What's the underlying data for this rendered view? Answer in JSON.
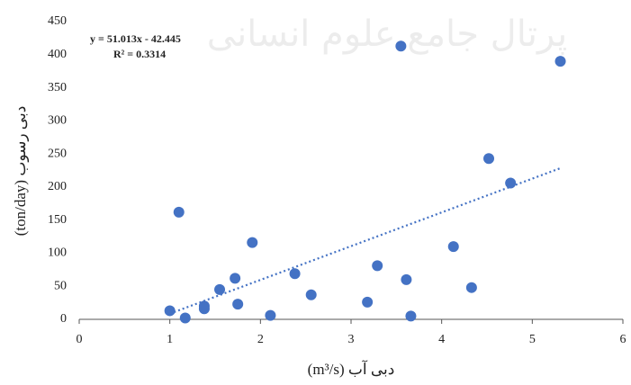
{
  "chart_data": {
    "type": "scatter",
    "watermark": "پرتال جامع علوم انسانی",
    "x_label": "دبی آب (m³/s)",
    "y_label": "دبی رسوب (ton/day)",
    "x": [
      1.0,
      1.1,
      1.17,
      1.38,
      1.38,
      1.55,
      1.72,
      1.75,
      1.91,
      2.11,
      2.38,
      2.56,
      3.18,
      3.29,
      3.55,
      3.61,
      3.66,
      4.13,
      4.33,
      4.52,
      4.76,
      5.31
    ],
    "values": [
      13,
      162,
      2,
      16,
      20,
      45,
      62,
      23,
      116,
      6,
      69,
      37,
      26,
      81,
      413,
      60,
      5,
      110,
      48,
      243,
      206,
      390
    ],
    "color": "#4472c4",
    "trendline": {
      "slope": 51.013,
      "intercept": -42.445,
      "x_range": [
        1.0,
        5.31
      ],
      "equation": "y = 51.013x - 42.445",
      "r2": "R² = 0.3314"
    },
    "xlim": [
      0,
      6
    ],
    "xticks": [
      0,
      1,
      2,
      3,
      4,
      5,
      6
    ],
    "ylim": [
      0,
      450
    ],
    "yticks": [
      0,
      50,
      100,
      150,
      200,
      250,
      300,
      350,
      400,
      450
    ],
    "grid": false
  }
}
